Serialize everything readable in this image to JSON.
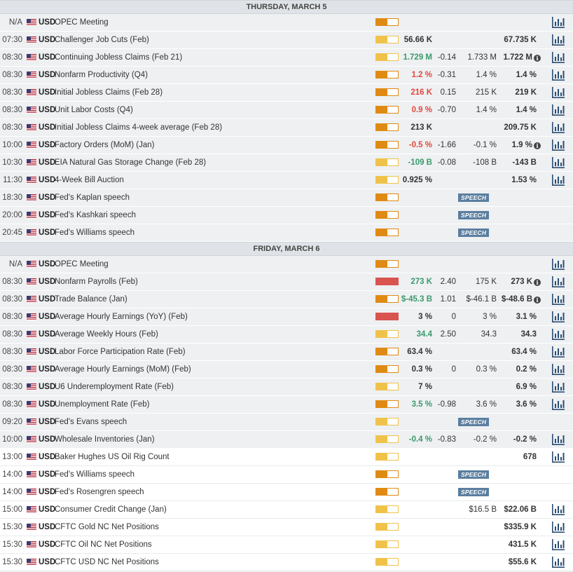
{
  "days": [
    {
      "label": "THURSDAY, MARCH 5",
      "events": [
        {
          "time": "N/A",
          "currency": "USD",
          "name": "OPEC Meeting",
          "impact": "medium",
          "actual": "",
          "actual_color": "",
          "deviation": "",
          "consensus": "",
          "previous": "",
          "info": false,
          "speech": false,
          "chart": true,
          "row_style": "shade"
        },
        {
          "time": "07:30",
          "currency": "USD",
          "name": "Challenger Job Cuts (Feb)",
          "impact": "low",
          "actual": "56.66 K",
          "actual_color": "",
          "deviation": "",
          "consensus": "",
          "previous": "67.735 K",
          "info": false,
          "speech": false,
          "chart": true,
          "row_style": "shade"
        },
        {
          "time": "08:30",
          "currency": "USD",
          "name": "Continuing Jobless Claims (Feb 21)",
          "impact": "low",
          "actual": "1.729 M",
          "actual_color": "pos",
          "deviation": "-0.14",
          "consensus": "1.733 M",
          "previous": "1.722 M",
          "info": true,
          "speech": false,
          "chart": true,
          "row_style": "shade"
        },
        {
          "time": "08:30",
          "currency": "USD",
          "name": "Nonfarm Productivity (Q4)",
          "impact": "medium",
          "actual": "1.2 %",
          "actual_color": "neg",
          "deviation": "-0.31",
          "consensus": "1.4 %",
          "previous": "1.4 %",
          "info": false,
          "speech": false,
          "chart": true,
          "row_style": "shade"
        },
        {
          "time": "08:30",
          "currency": "USD",
          "name": "Initial Jobless Claims (Feb 28)",
          "impact": "medium",
          "actual": "216 K",
          "actual_color": "neg",
          "deviation": "0.15",
          "consensus": "215 K",
          "previous": "219 K",
          "info": false,
          "speech": false,
          "chart": true,
          "row_style": "shade"
        },
        {
          "time": "08:30",
          "currency": "USD",
          "name": "Unit Labor Costs (Q4)",
          "impact": "medium",
          "actual": "0.9 %",
          "actual_color": "neg",
          "deviation": "-0.70",
          "consensus": "1.4 %",
          "previous": "1.4 %",
          "info": false,
          "speech": false,
          "chart": true,
          "row_style": "shade"
        },
        {
          "time": "08:30",
          "currency": "USD",
          "name": "Initial Jobless Claims 4-week average (Feb 28)",
          "impact": "medium",
          "actual": "213 K",
          "actual_color": "",
          "deviation": "",
          "consensus": "",
          "previous": "209.75 K",
          "info": false,
          "speech": false,
          "chart": true,
          "row_style": "shade"
        },
        {
          "time": "10:00",
          "currency": "USD",
          "name": "Factory Orders (MoM) (Jan)",
          "impact": "medium",
          "actual": "-0.5 %",
          "actual_color": "neg",
          "deviation": "-1.66",
          "consensus": "-0.1 %",
          "previous": "1.9 %",
          "info": true,
          "speech": false,
          "chart": true,
          "row_style": "shade"
        },
        {
          "time": "10:30",
          "currency": "USD",
          "name": "EIA Natural Gas Storage Change (Feb 28)",
          "impact": "low",
          "actual": "-109 B",
          "actual_color": "pos",
          "deviation": "-0.08",
          "consensus": "-108 B",
          "previous": "-143 B",
          "info": false,
          "speech": false,
          "chart": true,
          "row_style": "shade"
        },
        {
          "time": "11:30",
          "currency": "USD",
          "name": "4-Week Bill Auction",
          "impact": "low",
          "actual": "0.925 %",
          "actual_color": "",
          "deviation": "",
          "consensus": "",
          "previous": "1.53 %",
          "info": false,
          "speech": false,
          "chart": true,
          "row_style": "shade"
        },
        {
          "time": "18:30",
          "currency": "USD",
          "name": "Fed's Kaplan speech",
          "impact": "medium",
          "actual": "",
          "actual_color": "",
          "deviation": "",
          "consensus": "",
          "previous": "",
          "info": false,
          "speech": true,
          "chart": false,
          "row_style": "shade"
        },
        {
          "time": "20:00",
          "currency": "USD",
          "name": "Fed's Kashkari speech",
          "impact": "medium",
          "actual": "",
          "actual_color": "",
          "deviation": "",
          "consensus": "",
          "previous": "",
          "info": false,
          "speech": true,
          "chart": false,
          "row_style": "shade"
        },
        {
          "time": "20:45",
          "currency": "USD",
          "name": "Fed's Williams speech",
          "impact": "medium",
          "actual": "",
          "actual_color": "",
          "deviation": "",
          "consensus": "",
          "previous": "",
          "info": false,
          "speech": true,
          "chart": false,
          "row_style": "shade"
        }
      ]
    },
    {
      "label": "FRIDAY, MARCH 6",
      "events": [
        {
          "time": "N/A",
          "currency": "USD",
          "name": "OPEC Meeting",
          "impact": "medium",
          "actual": "",
          "actual_color": "",
          "deviation": "",
          "consensus": "",
          "previous": "",
          "info": false,
          "speech": false,
          "chart": true,
          "row_style": "shade"
        },
        {
          "time": "08:30",
          "currency": "USD",
          "name": "Nonfarm Payrolls (Feb)",
          "impact": "high",
          "actual": "273 K",
          "actual_color": "pos",
          "deviation": "2.40",
          "consensus": "175 K",
          "previous": "273 K",
          "info": true,
          "speech": false,
          "chart": true,
          "row_style": "shade"
        },
        {
          "time": "08:30",
          "currency": "USD",
          "name": "Trade Balance (Jan)",
          "impact": "medium",
          "actual": "$-45.3 B",
          "actual_color": "pos",
          "deviation": "1.01",
          "consensus": "$-46.1 B",
          "previous": "$-48.6 B",
          "info": true,
          "speech": false,
          "chart": true,
          "row_style": "shade"
        },
        {
          "time": "08:30",
          "currency": "USD",
          "name": "Average Hourly Earnings (YoY) (Feb)",
          "impact": "high",
          "actual": "3 %",
          "actual_color": "",
          "deviation": "0",
          "consensus": "3 %",
          "previous": "3.1 %",
          "info": false,
          "speech": false,
          "chart": true,
          "row_style": "shade"
        },
        {
          "time": "08:30",
          "currency": "USD",
          "name": "Average Weekly Hours (Feb)",
          "impact": "low",
          "actual": "34.4",
          "actual_color": "pos",
          "deviation": "2.50",
          "consensus": "34.3",
          "previous": "34.3",
          "info": false,
          "speech": false,
          "chart": true,
          "row_style": "shade"
        },
        {
          "time": "08:30",
          "currency": "USD",
          "name": "Labor Force Participation Rate (Feb)",
          "impact": "medium",
          "actual": "63.4 %",
          "actual_color": "",
          "deviation": "",
          "consensus": "",
          "previous": "63.4 %",
          "info": false,
          "speech": false,
          "chart": true,
          "row_style": "shade"
        },
        {
          "time": "08:30",
          "currency": "USD",
          "name": "Average Hourly Earnings (MoM) (Feb)",
          "impact": "medium",
          "actual": "0.3 %",
          "actual_color": "",
          "deviation": "0",
          "consensus": "0.3 %",
          "previous": "0.2 %",
          "info": false,
          "speech": false,
          "chart": true,
          "row_style": "shade"
        },
        {
          "time": "08:30",
          "currency": "USD",
          "name": "U6 Underemployment Rate (Feb)",
          "impact": "low",
          "actual": "7 %",
          "actual_color": "",
          "deviation": "",
          "consensus": "",
          "previous": "6.9 %",
          "info": false,
          "speech": false,
          "chart": true,
          "row_style": "shade"
        },
        {
          "time": "08:30",
          "currency": "USD",
          "name": "Unemployment Rate (Feb)",
          "impact": "medium",
          "actual": "3.5 %",
          "actual_color": "pos",
          "deviation": "-0.98",
          "consensus": "3.6 %",
          "previous": "3.6 %",
          "info": false,
          "speech": false,
          "chart": true,
          "row_style": "shade"
        },
        {
          "time": "09:20",
          "currency": "USD",
          "name": "Fed's Evans speech",
          "impact": "low",
          "actual": "",
          "actual_color": "",
          "deviation": "",
          "consensus": "",
          "previous": "",
          "info": false,
          "speech": true,
          "chart": false,
          "row_style": "shade"
        },
        {
          "time": "10:00",
          "currency": "USD",
          "name": "Wholesale Inventories (Jan)",
          "impact": "low",
          "actual": "-0.4 %",
          "actual_color": "pos",
          "deviation": "-0.83",
          "consensus": "-0.2 %",
          "previous": "-0.2 %",
          "info": false,
          "speech": false,
          "chart": true,
          "row_style": "shade"
        },
        {
          "time": "13:00",
          "currency": "USD",
          "name": "Baker Hughes US Oil Rig Count",
          "impact": "low",
          "actual": "",
          "actual_color": "",
          "deviation": "",
          "consensus": "",
          "previous": "678",
          "info": false,
          "speech": false,
          "chart": true,
          "row_style": "plain"
        },
        {
          "time": "14:00",
          "currency": "USD",
          "name": "Fed's Williams speech",
          "impact": "medium",
          "actual": "",
          "actual_color": "",
          "deviation": "",
          "consensus": "",
          "previous": "",
          "info": false,
          "speech": true,
          "chart": false,
          "row_style": "plain"
        },
        {
          "time": "14:00",
          "currency": "USD",
          "name": "Fed's Rosengren speech",
          "impact": "medium",
          "actual": "",
          "actual_color": "",
          "deviation": "",
          "consensus": "",
          "previous": "",
          "info": false,
          "speech": true,
          "chart": false,
          "row_style": "plain"
        },
        {
          "time": "15:00",
          "currency": "USD",
          "name": "Consumer Credit Change (Jan)",
          "impact": "low",
          "actual": "",
          "actual_color": "",
          "deviation": "",
          "consensus": "$16.5 B",
          "previous": "$22.06 B",
          "info": false,
          "speech": false,
          "chart": true,
          "row_style": "plain"
        },
        {
          "time": "15:30",
          "currency": "USD",
          "name": "CFTC Gold NC Net Positions",
          "impact": "low",
          "actual": "",
          "actual_color": "",
          "deviation": "",
          "consensus": "",
          "previous": "$335.9 K",
          "info": false,
          "speech": false,
          "chart": true,
          "row_style": "plain"
        },
        {
          "time": "15:30",
          "currency": "USD",
          "name": "CFTC Oil NC Net Positions",
          "impact": "low",
          "actual": "",
          "actual_color": "",
          "deviation": "",
          "consensus": "",
          "previous": "431.5 K",
          "info": false,
          "speech": false,
          "chart": true,
          "row_style": "plain"
        },
        {
          "time": "15:30",
          "currency": "USD",
          "name": "CFTC USD NC Net Positions",
          "impact": "low",
          "actual": "",
          "actual_color": "",
          "deviation": "",
          "consensus": "",
          "previous": "$55.6 K",
          "info": false,
          "speech": false,
          "chart": true,
          "row_style": "plain"
        }
      ]
    }
  ],
  "labels": {
    "speech_badge": "SPEECH",
    "info_glyph": "i"
  },
  "impact_levels": {
    "low": 0.5,
    "medium": 0.5,
    "high": 1.0
  },
  "colors": {
    "positive": "#3a9a6c",
    "negative": "#e5473b",
    "impact_medium": "#e08a13",
    "impact_low": "#f0c24a",
    "impact_high": "#d9534f",
    "speech_badge": "#5a7ea0"
  },
  "icons": {
    "flag": "us-flag-icon",
    "chart": "bar-chart-icon",
    "info": "info-icon"
  }
}
